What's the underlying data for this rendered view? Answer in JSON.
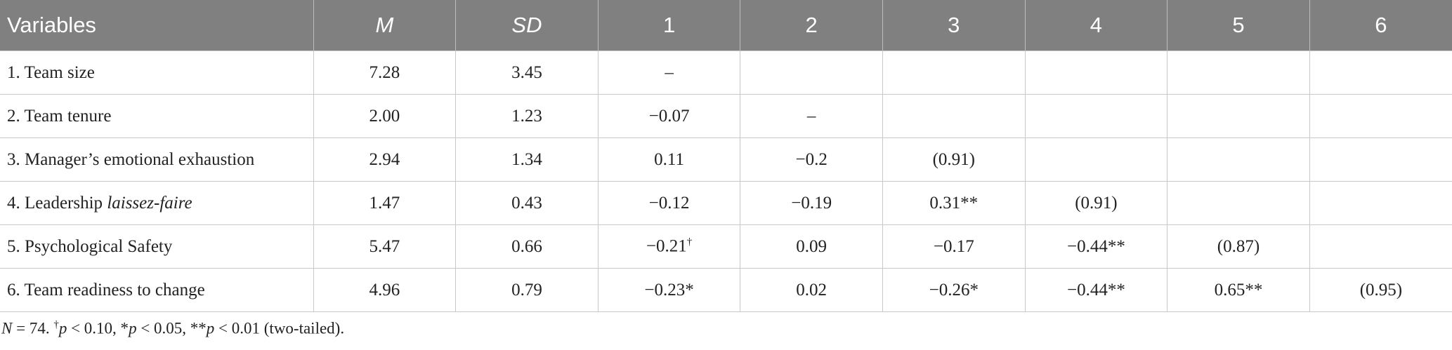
{
  "table": {
    "header": [
      "Variables",
      "M",
      "SD",
      "1",
      "2",
      "3",
      "4",
      "5",
      "6"
    ],
    "rows": [
      {
        "label": "1. Team size",
        "cells": [
          "7.28",
          "3.45",
          "–"
        ]
      },
      {
        "label": "2. Team tenure",
        "cells": [
          "2.00",
          "1.23",
          "−0.07",
          "–"
        ]
      },
      {
        "label": "3. Manager’s emotional exhaustion",
        "cells": [
          "2.94",
          "1.34",
          "0.11",
          "−0.2",
          "(0.91)"
        ]
      },
      {
        "label": "4. Leadership ",
        "label_italic": "laissez-faire",
        "cells": [
          "1.47",
          "0.43",
          "−0.12",
          "−0.19",
          "0.31**",
          "(0.91)"
        ]
      },
      {
        "label": "5. Psychological Safety",
        "cells": [
          "5.47",
          "0.66",
          {
            "value": "−0.21",
            "sup": "†"
          },
          "0.09",
          "−0.17",
          "−0.44**",
          "(0.87)"
        ]
      },
      {
        "label": "6. Team readiness to change",
        "cells": [
          "4.96",
          "0.79",
          "−0.23*",
          "0.02",
          "−0.26*",
          "−0.44**",
          "0.65**",
          "(0.95)"
        ]
      }
    ]
  },
  "footnote": {
    "parts": [
      "N",
      " = 74. ",
      "†",
      "p",
      " < 0.10, *",
      "p",
      " < 0.05, **",
      "p",
      " < 0.01 (two-tailed)."
    ]
  }
}
